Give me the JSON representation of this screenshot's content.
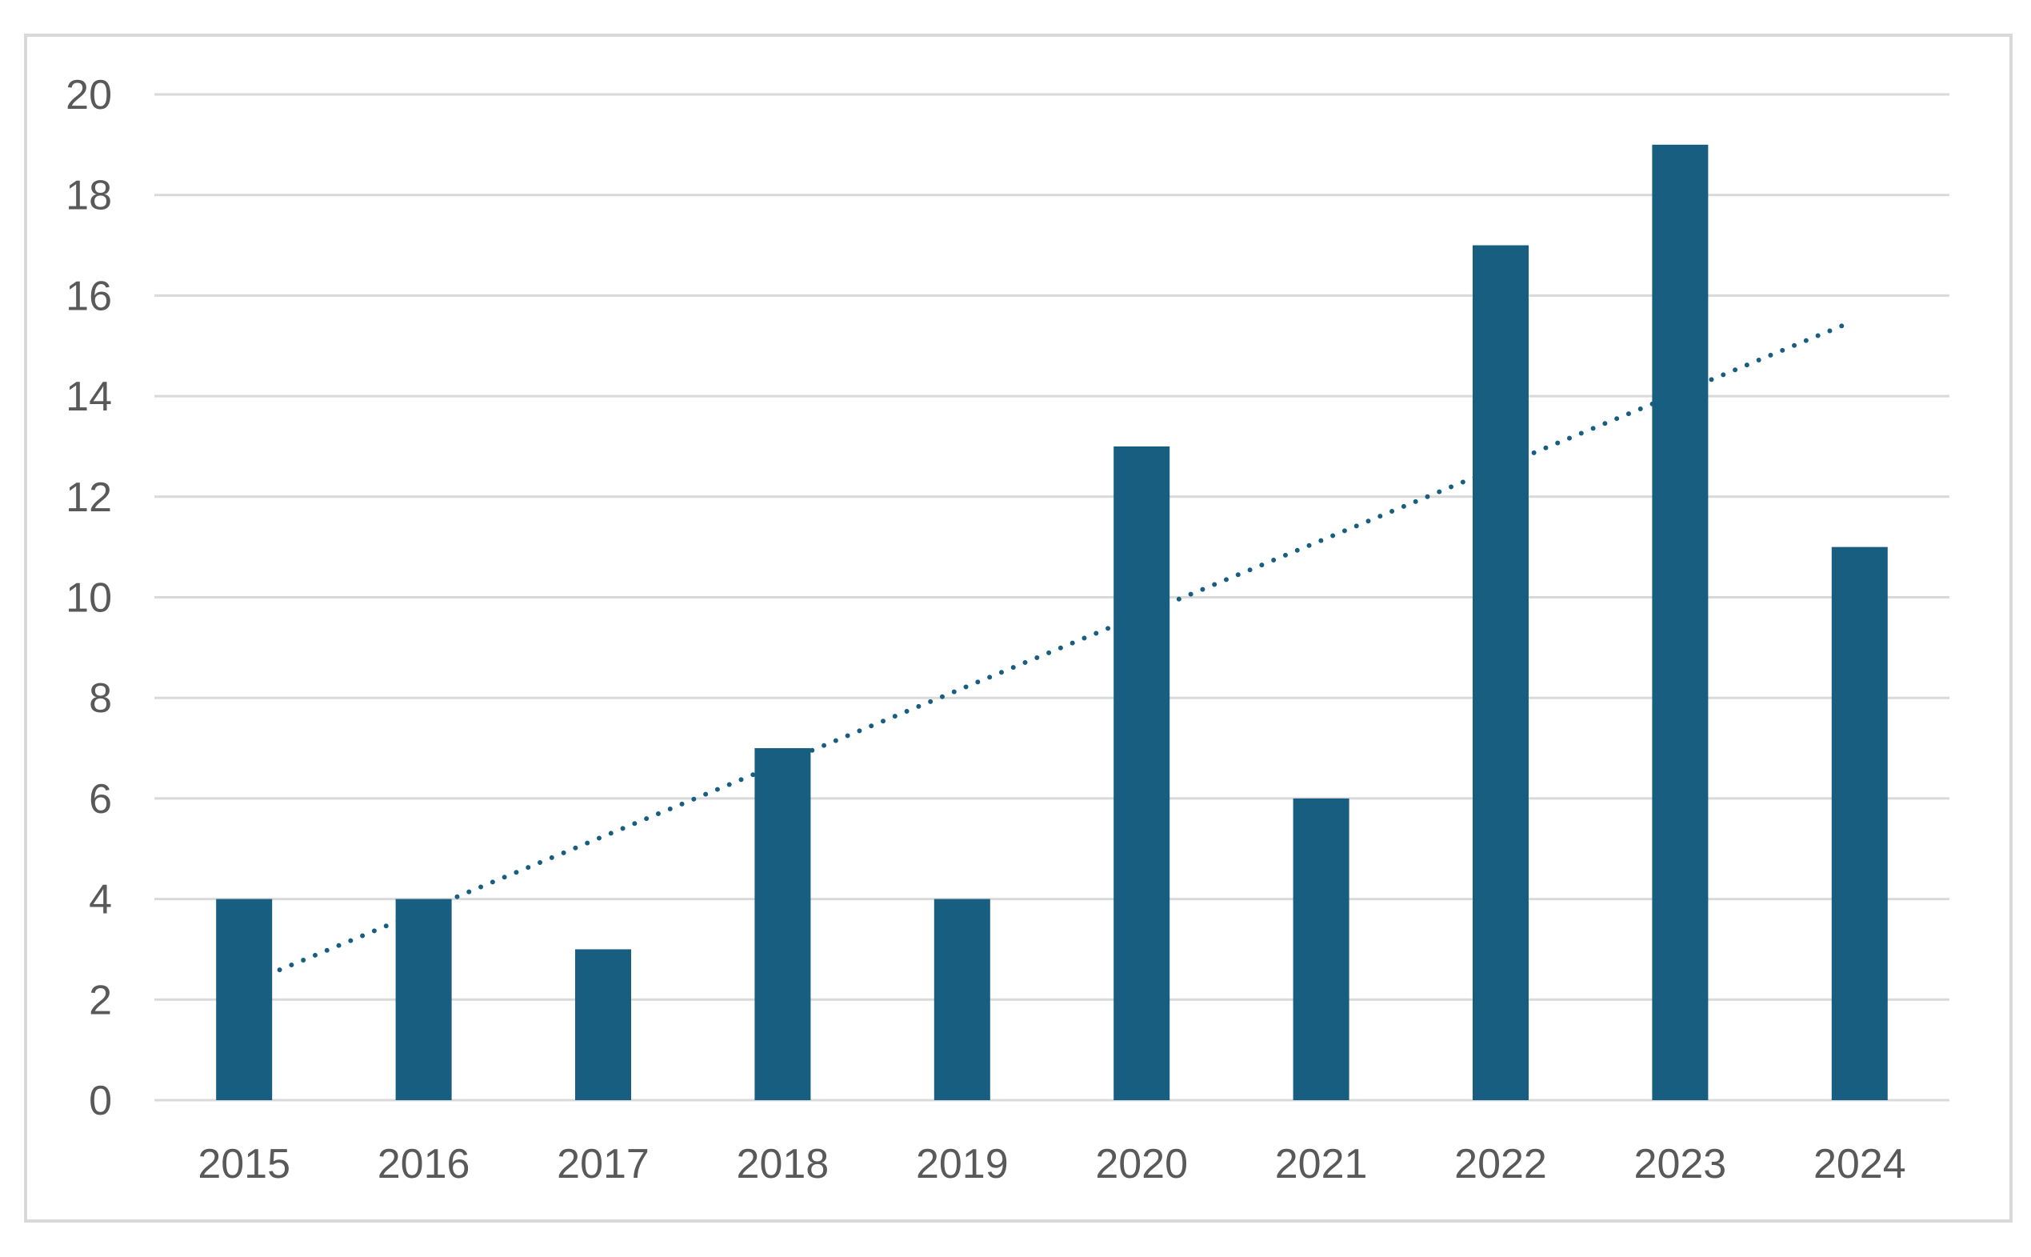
{
  "chart_data": {
    "type": "bar",
    "title": "",
    "xlabel": "",
    "ylabel": "",
    "categories": [
      "2015",
      "2016",
      "2017",
      "2018",
      "2019",
      "2020",
      "2021",
      "2022",
      "2023",
      "2024"
    ],
    "values": [
      4,
      4,
      3,
      7,
      4,
      13,
      6,
      17,
      19,
      11
    ],
    "ylim": [
      0,
      20
    ],
    "yticks": [
      "0",
      "2",
      "4",
      "6",
      "8",
      "10",
      "12",
      "14",
      "16",
      "18",
      "20"
    ],
    "grid": true,
    "legend": "none",
    "trendline": {
      "type": "linear",
      "style": "dotted",
      "start_value": 2.3,
      "end_value": 15.4
    },
    "colors": {
      "bar": "#175e80",
      "trendline": "#175e80",
      "grid": "#d9d9d9",
      "axis_text": "#595959",
      "frame": "#d9d9d9"
    }
  }
}
